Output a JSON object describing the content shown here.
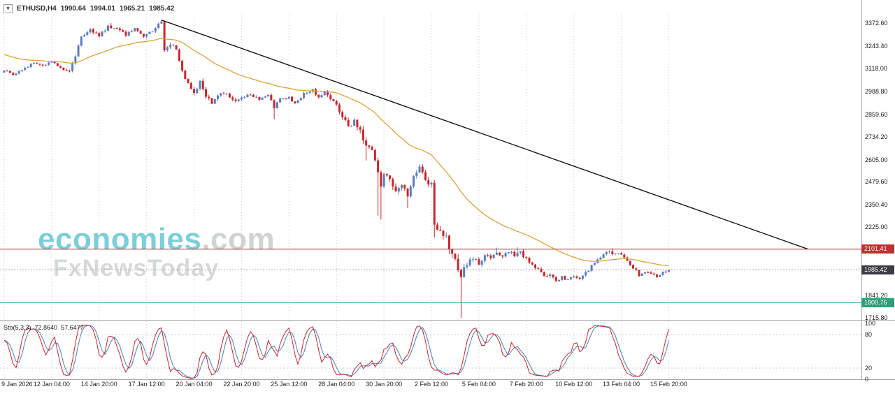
{
  "info_bar": {
    "symbol": "ETHUSD,H4",
    "open": "1990.64",
    "high": "1994.01",
    "low": "1965.21",
    "close": "1985.42"
  },
  "watermark": {
    "brand": "economies",
    "brand_suffix": ".com",
    "tagline": "FxNewsToday"
  },
  "indicator": {
    "label": "Sto(5,3,3)",
    "value_main": "72.8640",
    "value_signal": "57.6477"
  },
  "colors": {
    "bull": "#5b7cc0",
    "bear": "#c8252c",
    "ma": "#dba23c",
    "trendline": "#151515",
    "resistance_line": "#a03a3a",
    "support_line": "#2fa98f",
    "current_line": "#9a9aa0",
    "grid": "#cccccc",
    "separator": "#a8a8a8",
    "stoch_main": "#c8252c",
    "stoch_signal": "#4a7ebc",
    "badge_resistance": "#c03030",
    "badge_current": "#3d3d46",
    "badge_support": "#2aa176",
    "watermark_teal": "#7ccfd8"
  },
  "price_axis": {
    "ticks": [
      {
        "label": "3372.60",
        "price": 3372.6
      },
      {
        "label": "3243.40",
        "price": 3243.4
      },
      {
        "label": "3118.00",
        "price": 3118.0
      },
      {
        "label": "2988.80",
        "price": 2988.8
      },
      {
        "label": "2859.60",
        "price": 2859.6
      },
      {
        "label": "2734.20",
        "price": 2734.2
      },
      {
        "label": "2605.00",
        "price": 2605.0
      },
      {
        "label": "2479.60",
        "price": 2479.6
      },
      {
        "label": "2350.40",
        "price": 2350.4
      },
      {
        "label": "2225.00",
        "price": 2225.0
      },
      {
        "label": "1841.20",
        "price": 1841.2
      },
      {
        "label": "1715.80",
        "price": 1715.8
      }
    ],
    "badges": [
      {
        "label": "2101.41",
        "price": 2101.41,
        "bg": "#c03030",
        "name": "resistance-price-badge"
      },
      {
        "label": "1985.42",
        "price": 1985.42,
        "bg": "#3d3d46",
        "name": "current-price-badge"
      },
      {
        "label": "1800.76",
        "price": 1800.76,
        "bg": "#2aa176",
        "name": "support-price-badge"
      }
    ]
  },
  "time_axis": {
    "labels": [
      {
        "label": "9 Jan 2026",
        "index": 0
      },
      {
        "label": "12 Jan 04:00",
        "index": 16
      },
      {
        "label": "14 Jan 20:00",
        "index": 32
      },
      {
        "label": "17 Jan 12:00",
        "index": 48
      },
      {
        "label": "20 Jan 04:00",
        "index": 64
      },
      {
        "label": "22 Jan 20:00",
        "index": 80
      },
      {
        "label": "25 Jan 12:00",
        "index": 96
      },
      {
        "label": "28 Jan 04:00",
        "index": 112
      },
      {
        "label": "30 Jan 20:00",
        "index": 128
      },
      {
        "label": "2 Feb 12:00",
        "index": 144
      },
      {
        "label": "5 Feb 04:00",
        "index": 160
      },
      {
        "label": "7 Feb 20:00",
        "index": 176
      },
      {
        "label": "10 Feb 12:00",
        "index": 192
      },
      {
        "label": "13 Feb 04:00",
        "index": 208
      },
      {
        "label": "15 Feb 20:00",
        "index": 224
      }
    ]
  },
  "chart_data": [
    {
      "type": "candlestick",
      "symbol": "ETHUSD",
      "timeframe": "H4",
      "candle_count": 225,
      "first_open": 3095,
      "last_close": 1985.42,
      "visible_price_range": {
        "top": 3424,
        "bottom": 1704
      },
      "key_levels": {
        "resistance": 2101.41,
        "current": 1985.42,
        "support": 1800.76
      },
      "close_waypoints": [
        [
          0,
          3105
        ],
        [
          3,
          3085
        ],
        [
          6,
          3110
        ],
        [
          10,
          3150
        ],
        [
          13,
          3135
        ],
        [
          16,
          3155
        ],
        [
          19,
          3120
        ],
        [
          22,
          3105
        ],
        [
          24,
          3190
        ],
        [
          26,
          3300
        ],
        [
          29,
          3330
        ],
        [
          32,
          3305
        ],
        [
          35,
          3355
        ],
        [
          38,
          3340
        ],
        [
          41,
          3310
        ],
        [
          44,
          3345
        ],
        [
          47,
          3305
        ],
        [
          50,
          3330
        ],
        [
          53,
          3378
        ],
        [
          54,
          3215
        ],
        [
          56,
          3255
        ],
        [
          58,
          3225
        ],
        [
          60,
          3110
        ],
        [
          62,
          3030
        ],
        [
          64,
          2985
        ],
        [
          66,
          3045
        ],
        [
          68,
          2955
        ],
        [
          70,
          2930
        ],
        [
          73,
          2985
        ],
        [
          76,
          2960
        ],
        [
          78,
          2930
        ],
        [
          80,
          2955
        ],
        [
          83,
          2975
        ],
        [
          86,
          2945
        ],
        [
          89,
          2975
        ],
        [
          91,
          2895
        ],
        [
          93,
          2950
        ],
        [
          96,
          2955
        ],
        [
          98,
          2920
        ],
        [
          101,
          2975
        ],
        [
          104,
          3000
        ],
        [
          106,
          2955
        ],
        [
          108,
          2985
        ],
        [
          110,
          2950
        ],
        [
          112,
          2905
        ],
        [
          114,
          2855
        ],
        [
          116,
          2790
        ],
        [
          118,
          2820
        ],
        [
          120,
          2760
        ],
        [
          122,
          2690
        ],
        [
          124,
          2645
        ],
        [
          126,
          2540
        ],
        [
          127,
          2460
        ],
        [
          128,
          2520
        ],
        [
          130,
          2485
        ],
        [
          132,
          2420
        ],
        [
          134,
          2455
        ],
        [
          136,
          2405
        ],
        [
          138,
          2520
        ],
        [
          140,
          2560
        ],
        [
          142,
          2495
        ],
        [
          144,
          2465
        ],
        [
          145,
          2240
        ],
        [
          147,
          2210
        ],
        [
          149,
          2160
        ],
        [
          151,
          2080
        ],
        [
          153,
          1990
        ],
        [
          154,
          1930
        ],
        [
          156,
          2030
        ],
        [
          158,
          2045
        ],
        [
          160,
          2020
        ],
        [
          162,
          2070
        ],
        [
          164,
          2050
        ],
        [
          166,
          2085
        ],
        [
          168,
          2060
        ],
        [
          170,
          2090
        ],
        [
          172,
          2065
        ],
        [
          174,
          2085
        ],
        [
          176,
          2045
        ],
        [
          178,
          2015
        ],
        [
          180,
          1985
        ],
        [
          182,
          1950
        ],
        [
          184,
          1965
        ],
        [
          186,
          1920
        ],
        [
          188,
          1945
        ],
        [
          190,
          1925
        ],
        [
          192,
          1950
        ],
        [
          194,
          1935
        ],
        [
          196,
          1970
        ],
        [
          198,
          2005
        ],
        [
          200,
          2045
        ],
        [
          202,
          2070
        ],
        [
          204,
          2085
        ],
        [
          206,
          2072
        ],
        [
          208,
          2078
        ],
        [
          210,
          2040
        ],
        [
          212,
          1995
        ],
        [
          214,
          1958
        ],
        [
          216,
          1978
        ],
        [
          218,
          1962
        ],
        [
          220,
          1948
        ],
        [
          222,
          1972
        ],
        [
          224,
          1985.42
        ]
      ],
      "volatility_waypoints": [
        [
          0,
          13
        ],
        [
          20,
          13
        ],
        [
          26,
          20
        ],
        [
          53,
          20
        ],
        [
          56,
          26
        ],
        [
          64,
          28
        ],
        [
          80,
          18
        ],
        [
          96,
          16
        ],
        [
          110,
          18
        ],
        [
          116,
          32
        ],
        [
          126,
          48
        ],
        [
          128,
          38
        ],
        [
          140,
          28
        ],
        [
          145,
          42
        ],
        [
          154,
          55
        ],
        [
          158,
          32
        ],
        [
          166,
          22
        ],
        [
          180,
          20
        ],
        [
          196,
          18
        ],
        [
          206,
          16
        ],
        [
          216,
          15
        ],
        [
          224,
          13
        ]
      ],
      "wick_spikes": [
        {
          "index": 36,
          "high": 3372.6
        },
        {
          "index": 53,
          "high": 3390
        },
        {
          "index": 91,
          "low": 2832
        },
        {
          "index": 122,
          "low": 2600
        },
        {
          "index": 126,
          "low": 2290
        },
        {
          "index": 127,
          "low": 2268
        },
        {
          "index": 136,
          "low": 2332
        },
        {
          "index": 145,
          "low": 2168
        },
        {
          "index": 154,
          "low": 1716
        },
        {
          "index": 166,
          "high": 2110
        },
        {
          "index": 173,
          "high": 2112
        },
        {
          "index": 205,
          "high": 2106
        }
      ],
      "moving_average": {
        "type": "ema",
        "period": 40,
        "seed": 3200
      },
      "trendline": {
        "start_index": 53,
        "start_price": 3390,
        "end_index": 271,
        "end_price": 2101.41
      }
    },
    {
      "type": "line",
      "name": "stochastic-oscillator",
      "title": "Sto(5,3,3)",
      "last_values": {
        "main": 72.864,
        "signal": 57.6477
      },
      "range": [
        0,
        100
      ],
      "levels": [
        80,
        20
      ],
      "series": [
        {
          "name": "main",
          "color": "#c8252c"
        },
        {
          "name": "signal",
          "color": "#4a7ebc"
        }
      ],
      "derived_from": "candles"
    }
  ]
}
